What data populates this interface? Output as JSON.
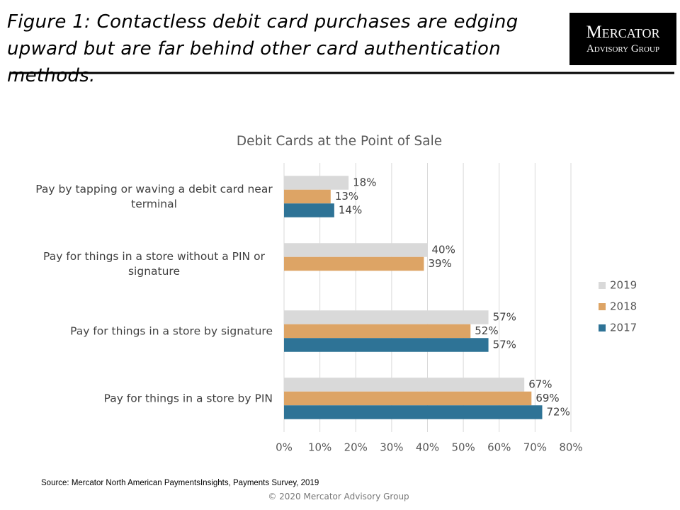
{
  "slide_title": "Figure 1: Contactless debit card purchases are edging upward but are far behind other card authentication methods.",
  "logo": {
    "line1": "Mercator",
    "line2": "Advisory Group"
  },
  "chart_data": {
    "type": "bar",
    "orientation": "horizontal",
    "title": "Debit Cards at the Point of Sale",
    "categories": [
      "Pay by tapping or waving a debit card near terminal",
      "Pay for things in a store without a PIN or signature",
      "Pay for things in a store by signature",
      "Pay for things in a store by PIN"
    ],
    "series": [
      {
        "name": "2019",
        "color": "#d9d9d9",
        "values": [
          18,
          40,
          57,
          67
        ],
        "value_labels": [
          "18%",
          "40%",
          "57%",
          "67%"
        ]
      },
      {
        "name": "2018",
        "color": "#dda465",
        "values": [
          13,
          39,
          52,
          69
        ],
        "value_labels": [
          "13%",
          "39%",
          "52%",
          "69%"
        ]
      },
      {
        "name": "2017",
        "color": "#2e7396",
        "values": [
          14,
          null,
          57,
          72
        ],
        "value_labels": [
          "14%",
          null,
          "57%",
          "72%"
        ]
      }
    ],
    "xlim": [
      0,
      80
    ],
    "xticks": [
      {
        "value": 0,
        "label": "0%"
      },
      {
        "value": 10,
        "label": "10%"
      },
      {
        "value": 20,
        "label": "20%"
      },
      {
        "value": 30,
        "label": "30%"
      },
      {
        "value": 40,
        "label": "40%"
      },
      {
        "value": 50,
        "label": "50%"
      },
      {
        "value": 60,
        "label": "60%"
      },
      {
        "value": 70,
        "label": "70%"
      },
      {
        "value": 80,
        "label": "80%"
      }
    ],
    "grid": true,
    "legend": "right"
  },
  "source": "Source: Mercator North American PaymentsInsights, Payments Survey, 2019",
  "copyright": "© 2020 Mercator Advisory Group"
}
